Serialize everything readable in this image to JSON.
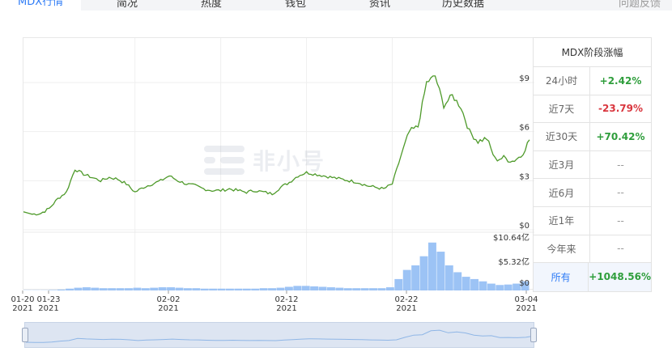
{
  "tabs": [
    {
      "label": "MDX行情",
      "active": true
    },
    {
      "label": "简况"
    },
    {
      "label": "热度"
    },
    {
      "label": "钱包"
    },
    {
      "label": "资讯"
    },
    {
      "label": "历史数据"
    }
  ],
  "feedback_label": "问题反馈",
  "watermark_text": "非小号",
  "stats": {
    "title": "MDX阶段涨幅",
    "rows": [
      {
        "label": "24小时",
        "value": "+2.42%",
        "trend": "up"
      },
      {
        "label": "近7天",
        "value": "-23.79%",
        "trend": "down"
      },
      {
        "label": "近30天",
        "value": "+70.42%",
        "trend": "up"
      },
      {
        "label": "近3月",
        "value": "--",
        "trend": "none"
      },
      {
        "label": "近6月",
        "value": "--",
        "trend": "none"
      },
      {
        "label": "近1年",
        "value": "--",
        "trend": "none"
      },
      {
        "label": "今年来",
        "value": "--",
        "trend": "none"
      },
      {
        "label": "所有",
        "value": "+1048.56%",
        "trend": "up"
      }
    ]
  },
  "colors": {
    "price_line": "#4e9a2a",
    "volume_bar": "#9cc3f5",
    "accent": "#2f7cf6",
    "up": "#2f9e3c",
    "down": "#d9363e"
  },
  "chart_data": {
    "type": "line",
    "price": {
      "y_ticks": [
        "$9",
        "$6",
        "$3",
        "$0"
      ],
      "y_tick_values": [
        9,
        6,
        3,
        0
      ],
      "ylim": [
        0,
        10
      ],
      "series": [
        {
          "day": 0,
          "v": 1.1
        },
        {
          "day": 1,
          "v": 0.95
        },
        {
          "day": 2,
          "v": 1.0
        },
        {
          "day": 3,
          "v": 1.3
        },
        {
          "day": 4,
          "v": 1.9
        },
        {
          "day": 5,
          "v": 2.3
        },
        {
          "day": 6,
          "v": 3.7
        },
        {
          "day": 7,
          "v": 3.4
        },
        {
          "day": 8,
          "v": 3.2
        },
        {
          "day": 9,
          "v": 3.0
        },
        {
          "day": 10,
          "v": 3.2
        },
        {
          "day": 11,
          "v": 3.1
        },
        {
          "day": 12,
          "v": 2.8
        },
        {
          "day": 13,
          "v": 2.3
        },
        {
          "day": 14,
          "v": 2.6
        },
        {
          "day": 15,
          "v": 2.8
        },
        {
          "day": 16,
          "v": 3.0
        },
        {
          "day": 17,
          "v": 3.3
        },
        {
          "day": 18,
          "v": 3.0
        },
        {
          "day": 19,
          "v": 2.8
        },
        {
          "day": 20,
          "v": 2.7
        },
        {
          "day": 21,
          "v": 2.5
        },
        {
          "day": 22,
          "v": 2.4
        },
        {
          "day": 23,
          "v": 2.4
        },
        {
          "day": 24,
          "v": 2.5
        },
        {
          "day": 25,
          "v": 2.4
        },
        {
          "day": 26,
          "v": 2.3
        },
        {
          "day": 27,
          "v": 2.4
        },
        {
          "day": 28,
          "v": 2.3
        },
        {
          "day": 29,
          "v": 2.2
        },
        {
          "day": 30,
          "v": 2.6
        },
        {
          "day": 31,
          "v": 2.9
        },
        {
          "day": 32,
          "v": 3.3
        },
        {
          "day": 33,
          "v": 3.5
        },
        {
          "day": 34,
          "v": 3.4
        },
        {
          "day": 35,
          "v": 3.3
        },
        {
          "day": 36,
          "v": 3.2
        },
        {
          "day": 37,
          "v": 3.1
        },
        {
          "day": 38,
          "v": 3.0
        },
        {
          "day": 39,
          "v": 2.9
        },
        {
          "day": 40,
          "v": 2.7
        },
        {
          "day": 41,
          "v": 2.6
        },
        {
          "day": 42,
          "v": 2.5
        },
        {
          "day": 43,
          "v": 2.8
        },
        {
          "day": 44,
          "v": 4.5
        },
        {
          "day": 45,
          "v": 6.0
        },
        {
          "day": 46,
          "v": 6.3
        },
        {
          "day": 47,
          "v": 9.0
        },
        {
          "day": 48,
          "v": 9.4
        },
        {
          "day": 49,
          "v": 7.6
        },
        {
          "day": 50,
          "v": 8.2
        },
        {
          "day": 51,
          "v": 7.5
        },
        {
          "day": 52,
          "v": 6.0
        },
        {
          "day": 53,
          "v": 5.4
        },
        {
          "day": 54,
          "v": 5.6
        },
        {
          "day": 55,
          "v": 4.3
        },
        {
          "day": 56,
          "v": 4.4
        },
        {
          "day": 57,
          "v": 4.2
        },
        {
          "day": 58,
          "v": 4.5
        },
        {
          "day": 59,
          "v": 5.5
        }
      ]
    },
    "volume": {
      "y_ticks": [
        "$10.64亿",
        "$5.32亿",
        "$0"
      ],
      "ylim": [
        0,
        10.64
      ],
      "values": [
        0.05,
        0.05,
        0.05,
        0.1,
        0.2,
        0.4,
        0.6,
        0.7,
        0.6,
        0.5,
        0.5,
        0.5,
        0.5,
        0.6,
        0.5,
        0.6,
        0.7,
        0.7,
        0.6,
        0.5,
        0.5,
        0.4,
        0.4,
        0.4,
        0.4,
        0.4,
        0.4,
        0.4,
        0.5,
        0.5,
        0.6,
        0.8,
        1.0,
        1.0,
        0.9,
        0.8,
        0.7,
        0.6,
        0.5,
        0.5,
        0.5,
        0.5,
        0.5,
        0.7,
        2.5,
        4.5,
        5.5,
        7.5,
        10.5,
        8.5,
        5.5,
        4.0,
        3.0,
        2.5,
        2.0,
        1.5,
        1.2,
        1.3,
        1.5,
        2.0
      ]
    },
    "x_ticks": [
      {
        "label": "01-20\n2021",
        "day": 0
      },
      {
        "label": "01-23\n2021",
        "day": 3
      },
      {
        "label": "02-02\n2021",
        "day": 13
      },
      {
        "label": "02-12\n2021",
        "day": 23
      },
      {
        "label": "02-22\n2021",
        "day": 33
      },
      {
        "label": "03-04\n2021",
        "day": 43
      }
    ],
    "grid": true
  }
}
